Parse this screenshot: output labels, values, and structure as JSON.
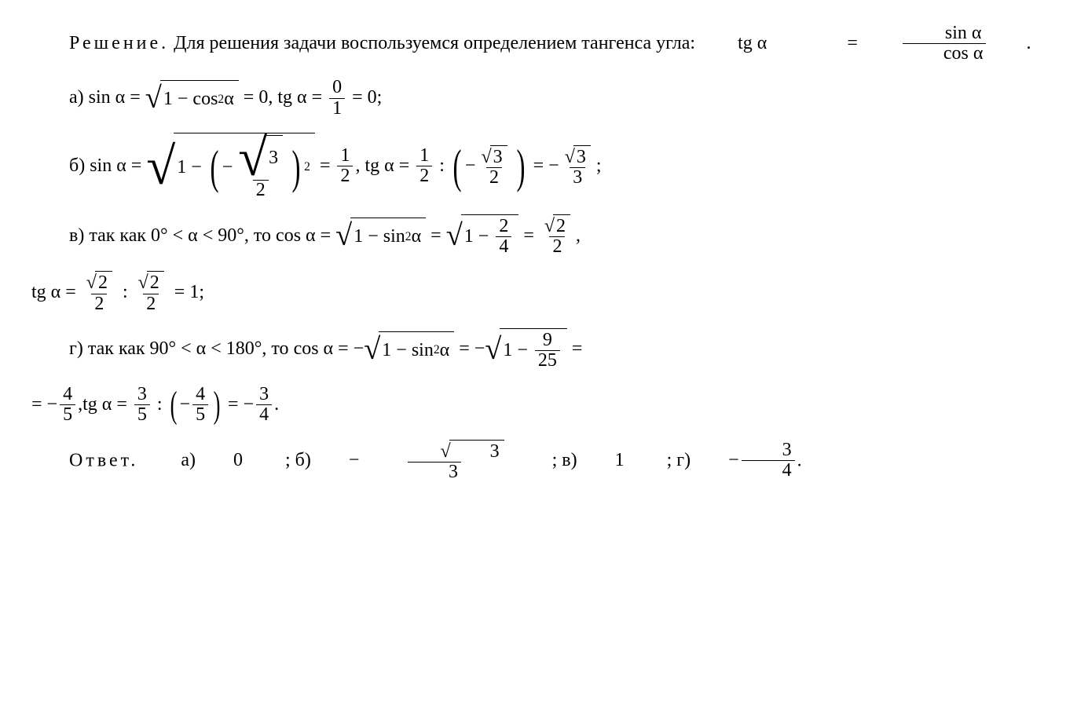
{
  "typography": {
    "font_family": "Times New Roman",
    "base_font_size_pt": 18,
    "text_color": "#000000",
    "background_color": "#ffffff",
    "rule_color": "#000000"
  },
  "intro": {
    "label_spaced": "Решение.",
    "text_before_formula": " Для решения задачи воспользуемся определением тангенса угла: ",
    "formula": {
      "lhs": "tg α",
      "eq": "=",
      "rhs_frac": {
        "num": "sin α",
        "den": "cos α"
      }
    },
    "period": "."
  },
  "parts": {
    "a": {
      "label": "а)",
      "sin_expr": {
        "lhs": "sin α",
        "eq": "=",
        "sqrt": "1 − cos",
        "sqrt_sup": "2",
        "sqrt_tail": " α",
        "eq2": "= 0"
      },
      "tg_expr": {
        "pre": ", tg α =",
        "frac": {
          "num": "0",
          "den": "1"
        },
        "post": "= 0;"
      }
    },
    "b": {
      "label": "б)",
      "sin_expr": {
        "lhs": "sin α =",
        "inside_one_minus": "1 −",
        "inner_frac_sign": "−",
        "inner_frac": {
          "num_sqrt": "3",
          "den": "2"
        },
        "outer_sup": "2",
        "eq": "=",
        "result_frac": {
          "num": "1",
          "den": "2"
        }
      },
      "tg_expr": {
        "pre": ", tg α =",
        "left_frac": {
          "num": "1",
          "den": "2"
        },
        "colon": ":",
        "paren_sign": "−",
        "paren_frac": {
          "num_sqrt": "3",
          "den": "2"
        },
        "eq": "= −",
        "result_frac": {
          "num_sqrt": "3",
          "den": "3"
        },
        "tail": ";"
      }
    },
    "c": {
      "label": "в)",
      "cond_text": "так как 0° < α < 90°, то ",
      "cos_expr": {
        "lhs": "cos α =",
        "sqrt1": "1 − sin",
        "sqrt1_sup": "2",
        "sqrt1_tail": " α",
        "eq1": "=",
        "sqrt2_pre": "1 −",
        "sqrt2_frac": {
          "num": "2",
          "den": "4"
        },
        "eq2": "=",
        "result_frac": {
          "num_sqrt": "2",
          "den": "2"
        },
        "comma": ","
      },
      "tg_expr": {
        "pre": "tg α =",
        "left_frac": {
          "num_sqrt": "2",
          "den": "2"
        },
        "colon": ":",
        "right_frac": {
          "num_sqrt": "2",
          "den": "2"
        },
        "eq": "= 1;"
      }
    },
    "d": {
      "label": "г)",
      "cond_text": "так как 90° < α < 180°, то ",
      "cos_expr": {
        "lhs": "cos α = −",
        "sqrt1": "1 − sin",
        "sqrt1_sup": "2",
        "sqrt1_tail": " α",
        "eq1": "= −",
        "sqrt2_pre": "1 −",
        "sqrt2_frac": {
          "num": "9",
          "den": "25"
        },
        "eq2": "="
      },
      "cos_cont": {
        "pre": "= −",
        "frac": {
          "num": "4",
          "den": "5"
        },
        "comma": ","
      },
      "tg_expr": {
        "pre": " tg α =",
        "left_frac": {
          "num": "3",
          "den": "5"
        },
        "colon": ":",
        "paren_sign": "−",
        "paren_frac": {
          "num": "4",
          "den": "5"
        },
        "eq": "= −",
        "result_frac": {
          "num": "3",
          "den": "4"
        },
        "tail": "."
      }
    }
  },
  "answer": {
    "label_spaced": "Ответ.",
    "a": {
      "label": " а) ",
      "value": "0"
    },
    "b": {
      "label": "; б) ",
      "sign": "−",
      "frac": {
        "num_sqrt": "3",
        "den": "3"
      }
    },
    "c": {
      "label": "; в) ",
      "value": "1"
    },
    "d": {
      "label": "; г) ",
      "sign": "−",
      "frac": {
        "num": "3",
        "den": "4"
      }
    },
    "period": "."
  }
}
